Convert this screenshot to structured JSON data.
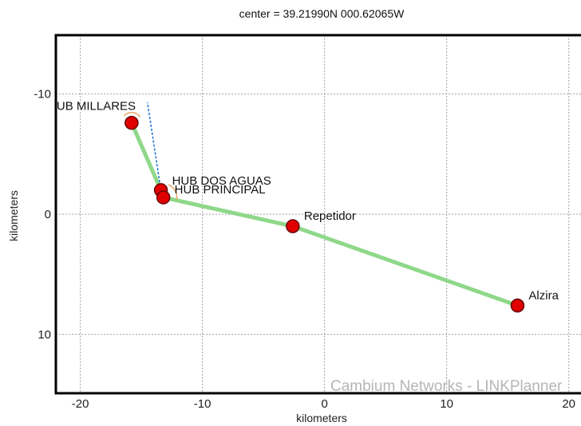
{
  "chart_data": {
    "type": "map-plot",
    "title": "center = 39.21990N 000.62065W",
    "xlabel": "kilometers",
    "ylabel": "kilometers",
    "xlim": [
      -22,
      21
    ],
    "ylim": [
      -14.9,
      14.9
    ],
    "y_inverted": true,
    "x_ticks": [
      -20,
      -10,
      0,
      10,
      20
    ],
    "y_ticks": [
      -10,
      0,
      10
    ],
    "grid": true,
    "watermark": "Cambium Networks - LINKPlanner",
    "colors": {
      "link": "#8fd88a",
      "node_fill": "#e00000",
      "node_stroke": "#660000",
      "dashed_link": "#1a6fd0",
      "antenna": "#e6a86a",
      "grid": "#a0a0a0",
      "frame": "#000000"
    },
    "nodes": [
      {
        "name": "HUB MILLARES",
        "label": "UB MILLARES",
        "x": -15.8,
        "y": -7.6
      },
      {
        "name": "HUB DOS AGUAS",
        "label": "HUB DOS AGUAS",
        "x": -13.4,
        "y": -2.0
      },
      {
        "name": "HUB PRINCIPAL",
        "label": "HUB PRINCIPAL",
        "x": -13.2,
        "y": -1.4
      },
      {
        "name": "Repetidor",
        "label": "Repetidor",
        "x": -2.6,
        "y": 1.0
      },
      {
        "name": "Alzira",
        "label": "Alzira",
        "x": 15.8,
        "y": 7.6
      }
    ],
    "links": [
      {
        "from": "HUB MILLARES",
        "to": "HUB DOS AGUAS",
        "style": "solid"
      },
      {
        "from": "HUB PRINCIPAL",
        "to": "Repetidor",
        "style": "solid"
      },
      {
        "from": "Repetidor",
        "to": "Alzira",
        "style": "solid"
      },
      {
        "from": "HUB DOS AGUAS",
        "to": "HUB MILLARES",
        "style": "dashed",
        "x_end": -14.5,
        "y_end": -9.3
      }
    ]
  }
}
